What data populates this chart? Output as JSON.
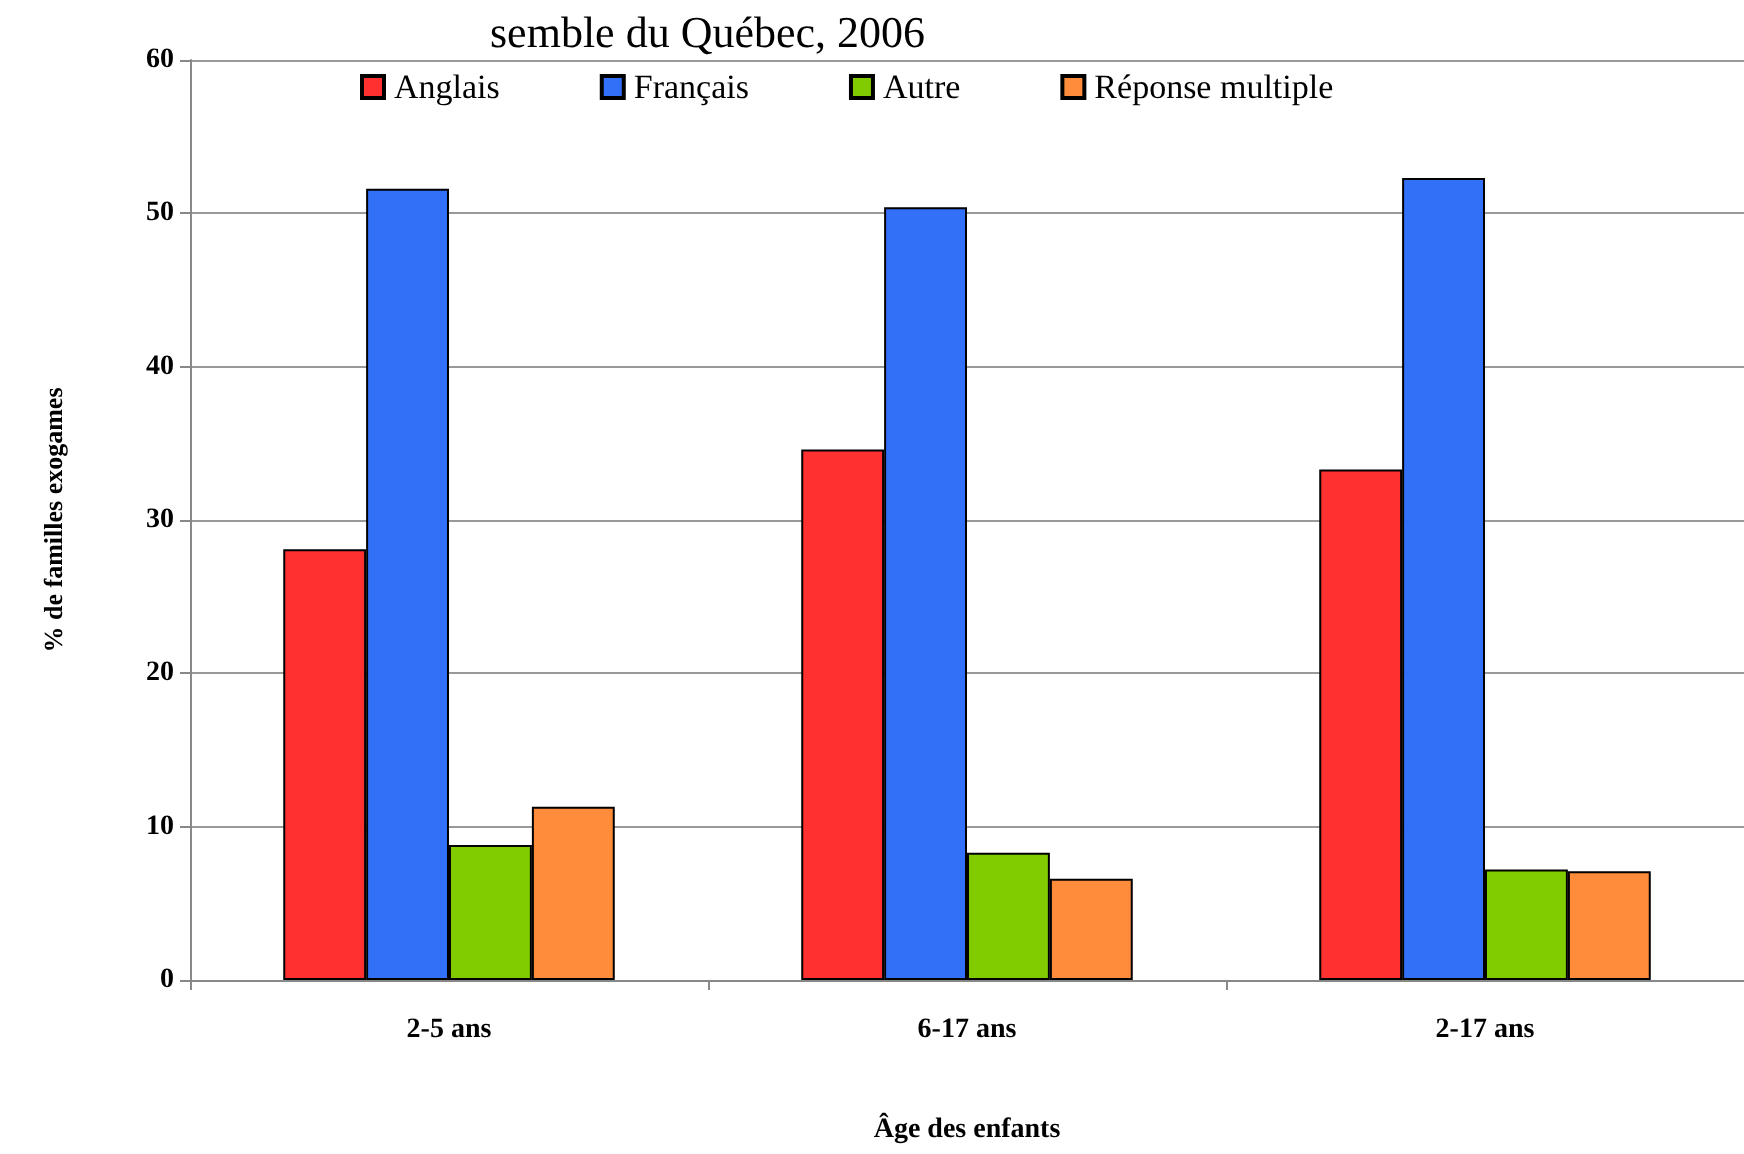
{
  "chart_data": {
    "type": "bar",
    "title": "semble du Québec, 2006",
    "xlabel": "Âge des enfants",
    "ylabel": "% de familles exogames",
    "categories": [
      "2-5 ans",
      "6-17 ans",
      "2-17 ans"
    ],
    "series": [
      {
        "name": "Anglais",
        "color": "#ff3030",
        "values": [
          28.1,
          34.6,
          33.3
        ]
      },
      {
        "name": "Français",
        "color": "#3370f8",
        "values": [
          51.6,
          50.4,
          52.3
        ]
      },
      {
        "name": "Autre",
        "color": "#80cc00",
        "values": [
          8.8,
          8.3,
          7.2
        ]
      },
      {
        "name": "Réponse multiple",
        "color": "#ff8c3a",
        "values": [
          11.3,
          6.6,
          7.1
        ]
      }
    ],
    "ylim": [
      0,
      60
    ],
    "yticks": [
      0,
      10,
      20,
      30,
      40,
      50,
      60
    ],
    "grid": "y",
    "legend": "top"
  }
}
